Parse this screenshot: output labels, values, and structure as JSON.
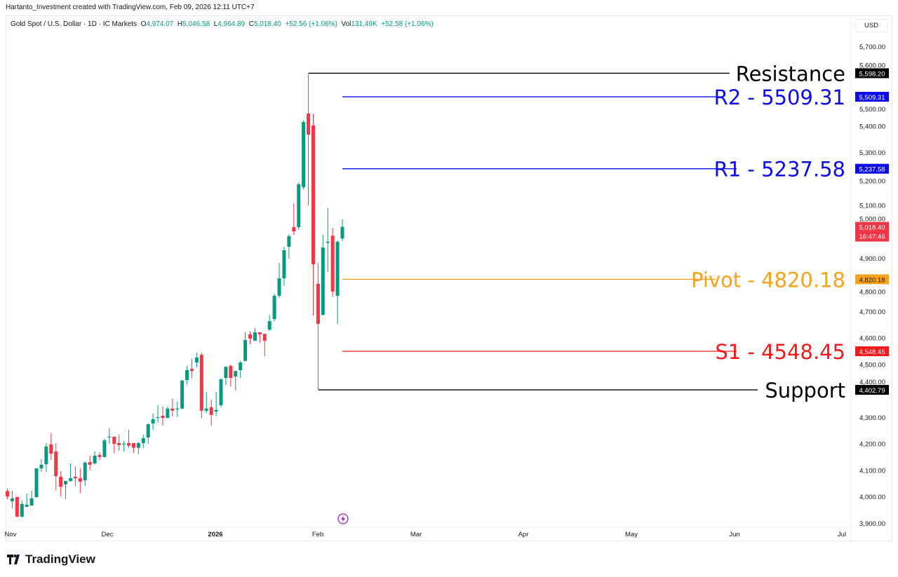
{
  "credit": "Hartanto_Investment created with TradingView.com, Feb 09, 2026 12:11 UTC+7",
  "legend": {
    "symbol": "Gold Spot / U.S. Dollar · 1D · IC Markets",
    "o_label": "O",
    "o": "4,974.07",
    "h_label": "H",
    "h": "5,046.58",
    "l_label": "L",
    "l": "4,964.89",
    "c_label": "C",
    "c": "5,018.40",
    "change": "+52.56 (+1.06%)",
    "vol_label": "Vol",
    "vol": "131.49K",
    "vol_change": "+52.58 (+1.06%)"
  },
  "currency_button": "USD",
  "logo_text": "TradingView",
  "colors": {
    "up": "#089981",
    "down": "#f23645",
    "blue": "#0c0ce8",
    "orange": "#f7a21b",
    "red": "#f21a1a",
    "black": "#000000",
    "last_price": "#f23645"
  },
  "icons": {
    "event": "lightning-icon",
    "logo": "tradingview-logo-icon"
  },
  "chart_data": {
    "type": "candlestick",
    "title": "",
    "ylim": [
      3900,
      5700
    ],
    "yticks": [
      "5,700.00",
      "5,600.00",
      "5,500.00",
      "5,400.00",
      "5,300.00",
      "5,200.00",
      "5,100.00",
      "5,000.00",
      "4,900.00",
      "4,800.00",
      "4,700.00",
      "4,600.00",
      "4,500.00",
      "4,400.00",
      "4,300.00",
      "4,200.00",
      "4,100.00",
      "4,000.00",
      "3,900.00"
    ],
    "xticks": [
      "Nov",
      "Dec",
      "2026",
      "Feb",
      "Mar",
      "Apr",
      "May",
      "Jun",
      "Jul"
    ],
    "grid": false,
    "candles": [
      [
        4020,
        4030,
        3990,
        4000
      ],
      [
        3982,
        4022,
        3956,
        3993
      ],
      [
        3998,
        4000,
        3922,
        3924
      ],
      [
        3924,
        3985,
        3922,
        3972
      ],
      [
        3961,
        4011,
        3961,
        3969
      ],
      [
        3966,
        4022,
        3966,
        3993
      ],
      [
        3998,
        4108,
        3996,
        4106
      ],
      [
        4106,
        4141,
        4093,
        4120
      ],
      [
        4122,
        4202,
        4093,
        4189
      ],
      [
        4197,
        4239,
        4138,
        4162
      ],
      [
        4170,
        4202,
        4024,
        4077
      ],
      [
        4075,
        4096,
        4000,
        4037
      ],
      [
        4046,
        4059,
        3990,
        4059
      ],
      [
        4059,
        4125,
        4056,
        4069
      ],
      [
        4075,
        4114,
        4040,
        4069
      ],
      [
        4069,
        4106,
        4013,
        4056
      ],
      [
        4061,
        4133,
        4040,
        4128
      ],
      [
        4130,
        4154,
        4100,
        4120
      ],
      [
        4125,
        4170,
        4120,
        4154
      ],
      [
        4157,
        4167,
        4138,
        4149
      ],
      [
        4149,
        4218,
        4149,
        4212
      ],
      [
        4223,
        4258,
        4199,
        4226
      ],
      [
        4226,
        4226,
        4165,
        4199
      ],
      [
        4202,
        4234,
        4173,
        4194
      ],
      [
        4197,
        4210,
        4170,
        4200
      ],
      [
        4202,
        4252,
        4184,
        4192
      ],
      [
        4202,
        4202,
        4165,
        4184
      ],
      [
        4184,
        4205,
        4160,
        4202
      ],
      [
        4202,
        4234,
        4184,
        4220
      ],
      [
        4223,
        4276,
        4199,
        4273
      ],
      [
        4276,
        4313,
        4252,
        4292
      ],
      [
        4297,
        4345,
        4279,
        4300
      ],
      [
        4305,
        4340,
        4268,
        4297
      ],
      [
        4297,
        4340,
        4295,
        4332
      ],
      [
        4332,
        4369,
        4303,
        4324
      ],
      [
        4329,
        4358,
        4300,
        4332
      ],
      [
        4332,
        4440,
        4330,
        4438
      ],
      [
        4440,
        4493,
        4422,
        4477
      ],
      [
        4482,
        4520,
        4447,
        4474
      ],
      [
        4506,
        4543,
        4488,
        4525
      ],
      [
        4535,
        4543,
        4295,
        4324
      ],
      [
        4324,
        4395,
        4316,
        4332
      ],
      [
        4337,
        4366,
        4268,
        4308
      ],
      [
        4321,
        4395,
        4303,
        4327
      ],
      [
        4345,
        4445,
        4337,
        4443
      ],
      [
        4448,
        4490,
        4422,
        4490
      ],
      [
        4493,
        4498,
        4416,
        4448
      ],
      [
        4453,
        4474,
        4400,
        4474
      ],
      [
        4477,
        4512,
        4448,
        4506
      ],
      [
        4512,
        4620,
        4512,
        4591
      ],
      [
        4612,
        4623,
        4575,
        4596
      ],
      [
        4588,
        4636,
        4588,
        4620
      ],
      [
        4620,
        4620,
        4580,
        4612
      ],
      [
        4614,
        4614,
        4530,
        4588
      ],
      [
        4630,
        4685,
        4625,
        4662
      ],
      [
        4670,
        4765,
        4662,
        4758
      ],
      [
        4758,
        4882,
        4750,
        4824
      ],
      [
        4824,
        4944,
        4795,
        4930
      ],
      [
        4943,
        4990,
        4898,
        4983
      ],
      [
        5017,
        5107,
        4988,
        5001
      ],
      [
        5017,
        5185,
        5006,
        5179
      ],
      [
        5168,
        5420,
        5160,
        5414
      ],
      [
        5446,
        5598.2,
        5099,
        5366
      ],
      [
        5401,
        5446,
        4684,
        4877
      ],
      [
        4803,
        4882,
        4402.79,
        4652
      ],
      [
        4686,
        4988,
        4684,
        4940
      ],
      [
        4958,
        5090,
        4848,
        4962
      ],
      [
        4985,
        5014,
        4755,
        4774
      ],
      [
        4758,
        4967,
        4652,
        4962
      ],
      [
        4974.07,
        5046.58,
        4964.89,
        5018.4
      ]
    ],
    "levels": [
      {
        "label": "Resistance",
        "value": 5598.2,
        "tag": "5,598.20",
        "color": "#000000"
      },
      {
        "label": "R2 - 5509.31",
        "value": 5509.31,
        "tag": "5,509.31",
        "color": "#0c0ce8"
      },
      {
        "label": "R1 - 5237.58",
        "value": 5237.58,
        "tag": "5,237.58",
        "color": "#0c0ce8"
      },
      {
        "label": "Pivot - 4820.18",
        "value": 4820.18,
        "tag": "4,820.18",
        "color": "#f7a21b"
      },
      {
        "label": "S1 - 4548.45",
        "value": 4548.45,
        "tag": "4,548.45",
        "color": "#f21a1a"
      },
      {
        "label": "Support",
        "value": 4402.79,
        "tag": "4,402.79",
        "color": "#000000"
      }
    ],
    "last_price": {
      "value": 5018.4,
      "tag": "5,018.40",
      "countdown": "16:47:46"
    }
  }
}
